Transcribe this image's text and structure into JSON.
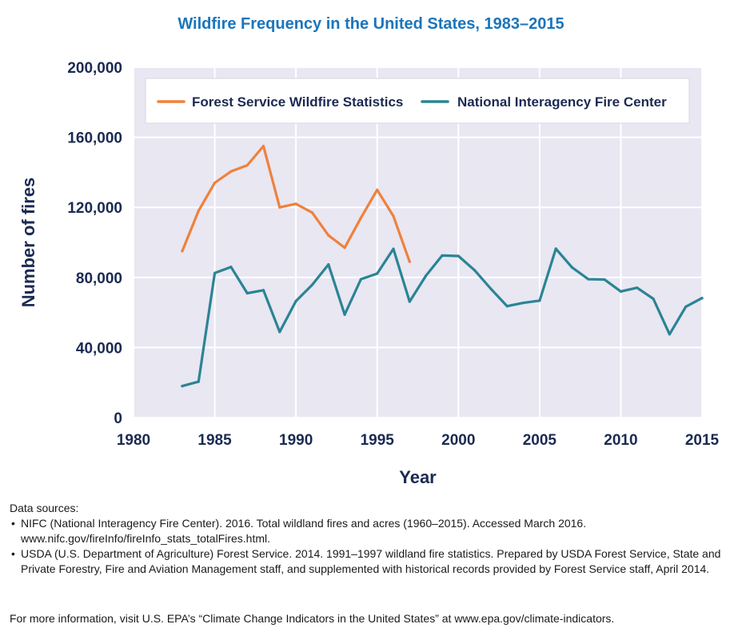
{
  "chart_data": {
    "type": "line",
    "title": "Wildfire Frequency in the United States, 1983–2015",
    "xlabel": "Year",
    "ylabel": "Number of fires",
    "xlim": [
      1980,
      2015
    ],
    "ylim": [
      0,
      200000
    ],
    "x_ticks": [
      1980,
      1985,
      1990,
      1995,
      2000,
      2005,
      2010,
      2015
    ],
    "y_ticks": [
      0,
      40000,
      80000,
      120000,
      160000,
      200000
    ],
    "y_tick_labels": [
      "0",
      "40,000",
      "80,000",
      "120,000",
      "160,000",
      "200,000"
    ],
    "grid": true,
    "legend_position": "top",
    "series": [
      {
        "name": "Forest Service Wildfire Statistics",
        "color": "#f0813b",
        "x": [
          1983,
          1984,
          1985,
          1986,
          1987,
          1988,
          1989,
          1990,
          1991,
          1992,
          1993,
          1994,
          1995,
          1996,
          1997
        ],
        "values": [
          95000,
          118000,
          134000,
          140500,
          144000,
          155000,
          120000,
          122000,
          117000,
          104000,
          97000,
          114000,
          130000,
          115000,
          89000
        ]
      },
      {
        "name": "National Interagency Fire Center",
        "color": "#2b8494",
        "x": [
          1983,
          1984,
          1985,
          1986,
          1987,
          1988,
          1989,
          1990,
          1991,
          1992,
          1993,
          1994,
          1995,
          1996,
          1997,
          1998,
          1999,
          2000,
          2001,
          2002,
          2003,
          2004,
          2005,
          2006,
          2007,
          2008,
          2009,
          2010,
          2011,
          2012,
          2013,
          2014,
          2015
        ],
        "values": [
          18000,
          20500,
          82500,
          86000,
          71000,
          72700,
          48900,
          66500,
          75800,
          87400,
          58800,
          79000,
          82200,
          96300,
          66200,
          81000,
          92500,
          92250,
          84100,
          73500,
          63600,
          65500,
          66750,
          96400,
          85700,
          79000,
          78800,
          72000,
          74100,
          67800,
          47600,
          63300,
          68200
        ]
      }
    ]
  },
  "sources": {
    "heading": "Data sources:",
    "items": [
      {
        "bullet": "•",
        "text": "NIFC (National Interagency Fire Center). 2016. Total wildland fires and acres (1960–2015). Accessed March 2016. www.nifc.gov/fireInfo/fireInfo_stats_totalFires.html."
      },
      {
        "bullet": "•",
        "text": "USDA (U.S. Department of Agriculture) Forest Service. 2014. 1991–1997 wildland fire statistics. Prepared by USDA Forest Service, State and Private Forestry, Fire and Aviation Management staff, and supplemented with historical records provided by Forest Service staff, April 2014."
      }
    ]
  },
  "more_info": "For more information, visit U.S. EPA’s “Climate Change Indicators in the United States” at www.epa.gov/climate-indicators.",
  "colors": {
    "plot_background": "#e8e7f2",
    "gridline": "#ffffff",
    "title_color": "#1b75bb",
    "axis_text": "#1b2a52"
  }
}
